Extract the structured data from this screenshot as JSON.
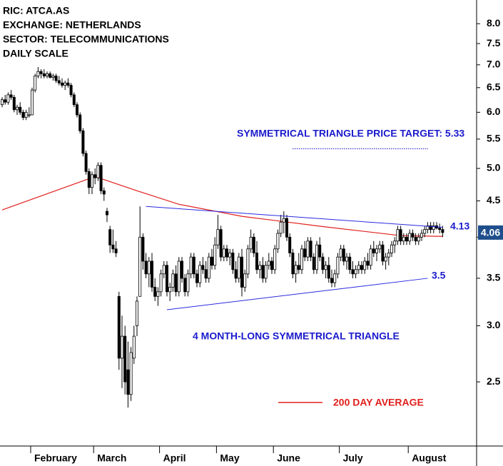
{
  "header": {
    "lines": [
      "RIC: ATCA.AS",
      "EXCHANGE: NETHERLANDS",
      "SECTOR: TELECOMMUNICATIONS",
      "DAILY SCALE"
    ]
  },
  "chart_data": {
    "type": "candlestick",
    "log_scale": true,
    "up_color": "#ffffff",
    "down_color": "#000000",
    "ylim": [
      2.03,
      8.64
    ],
    "yticks": [
      2.5,
      {
        "value": 3,
        "label": "3.0"
      },
      3.5,
      {
        "value": 4,
        "label": "4.0"
      },
      4.5,
      {
        "value": 5,
        "label": "5.0"
      },
      5.5,
      {
        "value": 6,
        "label": "6.0"
      },
      6.5,
      {
        "value": 7,
        "label": "7.0"
      },
      7.5,
      {
        "value": 8,
        "label": "8.0"
      }
    ],
    "categories": [
      null,
      null,
      null,
      null,
      null,
      null,
      null,
      null,
      null,
      null,
      "February",
      null,
      null,
      null,
      null,
      null,
      null,
      null,
      null,
      null,
      null,
      null,
      null,
      null,
      null,
      null,
      null,
      null,
      null,
      null,
      null,
      "March",
      null,
      null,
      null,
      null,
      null,
      null,
      null,
      null,
      null,
      null,
      null,
      null,
      null,
      null,
      null,
      null,
      null,
      null,
      null,
      null,
      null,
      "April",
      null,
      null,
      null,
      null,
      null,
      null,
      null,
      null,
      null,
      null,
      null,
      null,
      null,
      null,
      null,
      null,
      null,
      null,
      "May",
      null,
      null,
      null,
      null,
      null,
      null,
      null,
      null,
      null,
      null,
      null,
      null,
      null,
      null,
      null,
      null,
      null,
      null,
      "June",
      null,
      null,
      null,
      null,
      null,
      null,
      null,
      null,
      null,
      null,
      null,
      null,
      null,
      null,
      null,
      null,
      null,
      null,
      null,
      null,
      null,
      "July",
      null,
      null,
      null,
      null,
      null,
      null,
      null,
      null,
      null,
      null,
      null,
      null,
      null,
      null,
      null,
      null,
      null,
      null,
      null,
      null,
      null,
      null,
      "August",
      null,
      null,
      null,
      null,
      null,
      null,
      null,
      null,
      null
    ],
    "candles": [
      [
        6.15,
        6.3,
        6.1,
        6.25
      ],
      [
        6.25,
        6.35,
        6.15,
        6.2
      ],
      [
        6.2,
        6.4,
        6.15,
        6.35
      ],
      [
        6.35,
        6.45,
        6.25,
        6.3
      ],
      [
        6.3,
        6.35,
        6.0,
        6.05
      ],
      [
        6.05,
        6.15,
        5.95,
        6.1
      ],
      [
        6.1,
        6.2,
        5.95,
        6.0
      ],
      [
        6.0,
        6.05,
        5.85,
        5.9
      ],
      [
        5.9,
        6.05,
        5.85,
        6.0
      ],
      [
        5.95,
        6.1,
        5.9,
        5.95
      ],
      [
        5.95,
        6.5,
        5.95,
        6.45
      ],
      [
        6.45,
        6.8,
        6.4,
        6.75
      ],
      [
        6.75,
        6.95,
        6.7,
        6.85
      ],
      [
        6.85,
        6.9,
        6.7,
        6.8
      ],
      [
        6.8,
        6.9,
        6.7,
        6.75
      ],
      [
        6.75,
        6.85,
        6.7,
        6.8
      ],
      [
        6.8,
        6.85,
        6.7,
        6.72
      ],
      [
        6.72,
        6.8,
        6.65,
        6.75
      ],
      [
        6.75,
        6.8,
        6.6,
        6.65
      ],
      [
        6.65,
        6.75,
        6.55,
        6.6
      ],
      [
        6.6,
        6.7,
        6.5,
        6.55
      ],
      [
        6.55,
        6.65,
        6.45,
        6.6
      ],
      [
        6.6,
        6.7,
        6.5,
        6.55
      ],
      [
        6.55,
        6.6,
        6.3,
        6.35
      ],
      [
        6.35,
        6.4,
        6.1,
        6.15
      ],
      [
        6.15,
        6.2,
        5.9,
        5.95
      ],
      [
        5.95,
        6.0,
        5.6,
        5.65
      ],
      [
        5.65,
        5.7,
        5.2,
        5.25
      ],
      [
        5.25,
        5.3,
        4.9,
        4.95
      ],
      [
        4.95,
        5.0,
        4.6,
        4.7
      ],
      [
        4.7,
        4.95,
        4.6,
        4.9
      ],
      [
        4.9,
        5.0,
        4.75,
        4.85
      ],
      [
        4.85,
        5.1,
        4.8,
        5.05
      ],
      [
        5.05,
        5.1,
        4.6,
        4.65
      ],
      [
        4.65,
        4.7,
        4.5,
        4.6
      ],
      [
        4.35,
        4.4,
        4.2,
        4.3
      ],
      [
        4.1,
        4.15,
        3.8,
        3.9
      ],
      [
        3.9,
        4.1,
        3.8,
        3.85
      ],
      [
        3.85,
        3.95,
        3.75,
        3.8
      ],
      [
        3.3,
        3.35,
        2.6,
        2.7
      ],
      [
        2.7,
        3.1,
        2.45,
        2.9
      ],
      [
        2.9,
        3.0,
        2.4,
        2.5
      ],
      [
        2.6,
        2.85,
        2.3,
        2.4
      ],
      [
        2.4,
        2.8,
        2.35,
        2.75
      ],
      [
        2.7,
        3.0,
        2.65,
        2.9
      ],
      [
        3.0,
        3.3,
        2.9,
        3.25
      ],
      [
        3.3,
        4.42,
        3.3,
        4.0
      ],
      [
        4.0,
        4.05,
        3.6,
        3.7
      ],
      [
        3.7,
        3.8,
        3.5,
        3.55
      ],
      [
        3.55,
        3.75,
        3.4,
        3.7
      ],
      [
        3.7,
        3.8,
        3.35,
        3.4
      ],
      [
        3.4,
        3.5,
        3.25,
        3.3
      ],
      [
        3.3,
        3.4,
        3.2,
        3.35
      ],
      [
        3.35,
        3.6,
        3.3,
        3.55
      ],
      [
        3.55,
        3.7,
        3.5,
        3.65
      ],
      [
        3.65,
        3.7,
        3.3,
        3.35
      ],
      [
        3.35,
        3.45,
        3.25,
        3.4
      ],
      [
        3.4,
        3.6,
        3.35,
        3.55
      ],
      [
        3.55,
        3.65,
        3.3,
        3.35
      ],
      [
        3.35,
        3.75,
        3.3,
        3.7
      ],
      [
        3.7,
        3.75,
        3.45,
        3.5
      ],
      [
        3.5,
        3.55,
        3.3,
        3.35
      ],
      [
        3.35,
        3.6,
        3.3,
        3.55
      ],
      [
        3.55,
        3.8,
        3.5,
        3.75
      ],
      [
        3.75,
        3.8,
        3.5,
        3.55
      ],
      [
        3.55,
        3.6,
        3.4,
        3.45
      ],
      [
        3.45,
        3.7,
        3.4,
        3.65
      ],
      [
        3.65,
        3.75,
        3.55,
        3.6
      ],
      [
        3.6,
        3.7,
        3.45,
        3.5
      ],
      [
        3.5,
        3.8,
        3.45,
        3.75
      ],
      [
        3.75,
        3.85,
        3.6,
        3.65
      ],
      [
        3.65,
        4.0,
        3.6,
        3.9
      ],
      [
        3.9,
        4.3,
        3.85,
        4.1
      ],
      [
        4.1,
        4.15,
        3.7,
        3.75
      ],
      [
        3.75,
        3.9,
        3.7,
        3.85
      ],
      [
        3.85,
        3.9,
        3.7,
        3.75
      ],
      [
        3.75,
        3.85,
        3.65,
        3.8
      ],
      [
        3.8,
        3.85,
        3.55,
        3.6
      ],
      [
        3.6,
        3.7,
        3.45,
        3.5
      ],
      [
        3.5,
        3.8,
        3.45,
        3.75
      ],
      [
        3.75,
        3.85,
        3.3,
        3.4
      ],
      [
        3.4,
        3.6,
        3.35,
        3.55
      ],
      [
        3.55,
        3.9,
        3.5,
        3.85
      ],
      [
        3.85,
        4.1,
        3.8,
        4.0
      ],
      [
        4.0,
        4.05,
        3.75,
        3.8
      ],
      [
        3.8,
        3.95,
        3.55,
        3.6
      ],
      [
        3.6,
        3.7,
        3.5,
        3.65
      ],
      [
        3.65,
        3.75,
        3.45,
        3.5
      ],
      [
        3.5,
        3.7,
        3.45,
        3.65
      ],
      [
        3.65,
        3.8,
        3.6,
        3.7
      ],
      [
        3.7,
        3.75,
        3.55,
        3.6
      ],
      [
        3.6,
        3.9,
        3.55,
        3.85
      ],
      [
        3.85,
        4.1,
        3.8,
        4.05
      ],
      [
        4.05,
        4.3,
        4.0,
        4.2
      ],
      [
        4.2,
        4.35,
        4.05,
        4.25
      ],
      [
        4.25,
        4.3,
        3.95,
        4.0
      ],
      [
        4.0,
        4.05,
        3.75,
        3.8
      ],
      [
        3.8,
        3.85,
        3.5,
        3.55
      ],
      [
        3.55,
        3.7,
        3.45,
        3.65
      ],
      [
        3.65,
        3.8,
        3.55,
        3.6
      ],
      [
        3.6,
        3.9,
        3.55,
        3.85
      ],
      [
        3.85,
        3.95,
        3.7,
        3.75
      ],
      [
        3.75,
        4.0,
        3.7,
        3.95
      ],
      [
        3.95,
        4.0,
        3.7,
        3.75
      ],
      [
        3.75,
        3.8,
        3.55,
        3.6
      ],
      [
        3.6,
        3.95,
        3.55,
        3.9
      ],
      [
        3.9,
        4.0,
        3.7,
        3.75
      ],
      [
        3.75,
        3.8,
        3.55,
        3.6
      ],
      [
        3.6,
        3.7,
        3.5,
        3.65
      ],
      [
        3.65,
        3.75,
        3.45,
        3.5
      ],
      [
        3.5,
        3.6,
        3.4,
        3.45
      ],
      [
        3.45,
        3.6,
        3.4,
        3.55
      ],
      [
        3.55,
        3.8,
        3.5,
        3.75
      ],
      [
        3.75,
        3.9,
        3.7,
        3.85
      ],
      [
        3.85,
        3.9,
        3.65,
        3.7
      ],
      [
        3.7,
        3.8,
        3.6,
        3.75
      ],
      [
        3.75,
        3.8,
        3.55,
        3.6
      ],
      [
        3.6,
        3.7,
        3.5,
        3.55
      ],
      [
        3.55,
        3.65,
        3.5,
        3.6
      ],
      [
        3.6,
        3.7,
        3.55,
        3.65
      ],
      [
        3.65,
        3.7,
        3.55,
        3.6
      ],
      [
        3.6,
        3.75,
        3.55,
        3.7
      ],
      [
        3.7,
        3.8,
        3.6,
        3.65
      ],
      [
        3.65,
        3.9,
        3.6,
        3.85
      ],
      [
        3.85,
        3.95,
        3.75,
        3.8
      ],
      [
        3.8,
        3.9,
        3.7,
        3.85
      ],
      [
        3.85,
        3.95,
        3.8,
        3.9
      ],
      [
        3.9,
        3.95,
        3.65,
        3.7
      ],
      [
        3.7,
        3.8,
        3.6,
        3.75
      ],
      [
        3.75,
        3.85,
        3.65,
        3.8
      ],
      [
        3.8,
        3.95,
        3.75,
        3.9
      ],
      [
        3.9,
        4.0,
        3.8,
        3.95
      ],
      [
        3.95,
        4.15,
        3.9,
        4.1
      ],
      [
        4.1,
        4.15,
        3.9,
        3.95
      ],
      [
        3.95,
        4.05,
        3.9,
        4.0
      ],
      [
        4.0,
        4.05,
        3.9,
        3.95
      ],
      [
        3.95,
        4.1,
        3.9,
        4.05
      ],
      [
        4.05,
        4.1,
        3.95,
        4.0
      ],
      [
        4.0,
        4.05,
        3.9,
        3.95
      ],
      [
        3.95,
        4.05,
        3.9,
        4.0
      ],
      [
        4.0,
        4.1,
        3.95,
        4.05
      ],
      [
        4.05,
        4.15,
        4.0,
        4.1
      ],
      [
        4.1,
        4.2,
        4.05,
        4.15
      ],
      [
        4.15,
        4.2,
        4.05,
        4.1
      ],
      [
        4.1,
        4.2,
        4.05,
        4.15
      ],
      [
        4.15,
        4.2,
        4.1,
        4.12
      ],
      [
        4.12,
        4.18,
        4.05,
        4.1
      ],
      [
        4.1,
        4.15,
        4.0,
        4.06
      ]
    ],
    "series": [
      {
        "name": "200 DAY AVERAGE",
        "color": "#e0201c",
        "x": [
          0,
          31,
          45,
          59,
          80,
          107,
          133,
          147
        ],
        "values": [
          4.37,
          4.87,
          4.65,
          4.45,
          4.28,
          4.14,
          4.02,
          4.01
        ]
      }
    ],
    "last_price": 4.06,
    "target": {
      "label": "SYMMETRICAL TRIANGLE PRICE TARGET: 5.33",
      "value": 5.33
    },
    "triangle": {
      "label": "4 MONTH-LONG SYMMETRICAL TRIANGLE",
      "upper": {
        "label": "4.13",
        "x": [
          48,
          147
        ],
        "values": [
          4.42,
          4.13
        ]
      },
      "lower": {
        "label": "3.5",
        "x": [
          55,
          142
        ],
        "values": [
          3.16,
          3.5
        ]
      }
    }
  }
}
